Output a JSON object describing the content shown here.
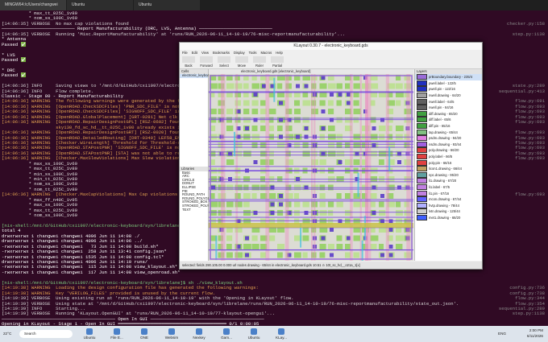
{
  "tabs": [
    "MINGW64:/c/Users/changwei",
    "Ubuntu",
    "Ubuntu"
  ],
  "terminal": {
    "lines": [
      {
        "text": "          * max_tt_025C_1v80",
        "color": "#e0e0e0"
      },
      {
        "text": "          * nom_ss_100C_1v60",
        "color": "#e0e0e0"
      },
      {
        "text": "[14:06:35] VERBOSE  No max cap violations found",
        "color": "#d8d8d8",
        "right": "checker.py:158"
      },
      {
        "text": "─────────────────────────── Report Manufacturability (DRC, LVS, Antenna) ───────────────────────────",
        "color": "#ffffff"
      },
      {
        "text": "[14:06:35] VERBOSE  Running 'Misc.ReportManufacturability' at 'runs/RUN_2026-06-11_14-10-19/76-misc-reportmanufacturability'...",
        "color": "#d8d8d8",
        "right": "step.py:1138"
      },
      {
        "text": "* Antenna",
        "color": "#ffffff"
      },
      {
        "text": "Passed ✅",
        "color": "#ffffff"
      },
      {
        "text": "",
        "color": "#ffffff"
      },
      {
        "text": "* LVS",
        "color": "#ffffff"
      },
      {
        "text": "Passed ✅",
        "color": "#ffffff"
      },
      {
        "text": "",
        "color": "#ffffff"
      },
      {
        "text": "* DRC",
        "color": "#ffffff"
      },
      {
        "text": "Passed ✅",
        "color": "#ffffff"
      },
      {
        "text": "",
        "color": "#ffffff"
      },
      {
        "text": "[14:06:36] INFO     Saving views to '/mnt/d/GitHub/cxi1997/electronic-keyboard/syn/librelane/runs/RUN_2026-06-11_14-10-19/final'...",
        "color": "#d8d8d8",
        "right": "state.py:289"
      },
      {
        "text": "[14:06:36] INFO     Flow complete.",
        "color": "#d8d8d8",
        "right": "sequential.py:413"
      },
      {
        "text": "Classic - Stage 80 - Report Manufacturability",
        "color": "#ffffff"
      },
      {
        "text": "[14:06:36] WARNING  The following warnings were generated by the flow:",
        "color": "#e0a050",
        "right": "flow.py:691"
      },
      {
        "text": "[14:06:36] WARNING  [OpenROAD.CheckSDCFiles] 'PNR_SDC_FILE' is not defined. Using generic fallback SDC for OpenROAD PnR steps.",
        "color": "#e0a050",
        "right": "flow.py:693"
      },
      {
        "text": "[14:06:36] WARNING  [OpenROAD.CheckSDCFiles] 'SIGNOFF_SDC_FILE' is not defined. Using generic fallback SDC for OpenROAD PnR steps.",
        "color": "#e0a050",
        "right": "flow.py:693"
      },
      {
        "text": "[14:06:36] WARNING  [OpenROAD.GlobalPlacement] [GRT-0281] Net clk has a single pin.",
        "color": "#e0a050",
        "right": "flow.py:693"
      },
      {
        "text": "[14:06:36] WARNING  [OpenROAD.RepairDesignPostGPL] [RSZ-0602] found 2 floating nets.",
        "color": "#e0a050",
        "right": "flow.py:693"
      },
      {
        "text": "                    sky130_fd_sc_hd__tt_025C_1v80 already exists in the library.",
        "color": "#e0a050"
      },
      {
        "text": "[14:06:36] WARNING  [OpenROAD.RepairDesignPostGRT] [RSZ-0020] found 2 floating nets.",
        "color": "#e0a050",
        "right": "flow.py:693"
      },
      {
        "text": "[14:06:36] WARNING  [OpenROAD.DetailedRouting] [DRT-0349] LEF58_ENCLOSURE with no CUTCLASS is not supported.",
        "color": "#e0a050",
        "right": "flow.py:693"
      },
      {
        "text": "[14:06:36] WARNING  [Checker.WireLength] Threshold for Threshold-surpassing long wires is not set.",
        "color": "#e0a050",
        "right": "flow.py:693"
      },
      {
        "text": "[14:06:36] WARNING  [OpenROAD.STAPostPNR] 'SIGNOFF_SDC_FILE' is not defined.",
        "color": "#e0a050",
        "right": "flow.py:693"
      },
      {
        "text": "[14:06:36] WARNING  [OpenROAD.STAPostPNR] [STA] was not able to read the max cap file.",
        "color": "#e0a050",
        "right": "flow.py:693"
      },
      {
        "text": "[14:06:36] WARNING  [Checker.MaxSlewViolations] Max Slew violations found in the following corners:",
        "color": "#e0a050",
        "right": "flow.py:693"
      },
      {
        "text": "          * max_ss_100C_1v60",
        "color": "#e0e0e0"
      },
      {
        "text": "          * max_tt_025C_1v80",
        "color": "#e0e0e0"
      },
      {
        "text": "          * min_ss_100C_1v60",
        "color": "#e0e0e0"
      },
      {
        "text": "          * min_tt_025C_1v80",
        "color": "#e0e0e0"
      },
      {
        "text": "          * nom_ss_100C_1v60",
        "color": "#e0e0e0"
      },
      {
        "text": "          * nom_tt_025C_1v80",
        "color": "#e0e0e0"
      },
      {
        "text": "[14:06:36] WARNING  [Checker.MaxCapViolations] Max Cap violations found in the following corners:",
        "color": "#e0a050",
        "right": "flow.py:693"
      },
      {
        "text": "          * max_ff_n40C_1v95",
        "color": "#e0e0e0"
      },
      {
        "text": "          * max_ss_100C_1v60",
        "color": "#e0e0e0"
      },
      {
        "text": "          * max_tt_025C_1v80",
        "color": "#e0e0e0"
      },
      {
        "text": "          * nom_ss_100C_1v60",
        "color": "#e0e0e0"
      },
      {
        "text": "",
        "color": "#ffffff"
      },
      {
        "text": "[nix-shell:/mnt/d/GitHub/cxi1997/electronic-keyboard/syn/librelane]$ ls -al",
        "color": "#7fd07f"
      },
      {
        "text": "total 4",
        "color": "#ffffff"
      },
      {
        "text": "drwxrwxrwx 1 changwei changwei 4096 Jun 11 14:08 ./",
        "color": "#ffffff"
      },
      {
        "text": "drwxrwxrwx 1 changwei changwei 4096 Jun 11 14:06 ../",
        "color": "#ffffff"
      },
      {
        "text": "-rwxrwxrwx 1 changwei changwei   73 Jun 11 14:08 build.sh*",
        "color": "#ffffff"
      },
      {
        "text": "-rwxrwxrwx 1 changwei changwei  258 Jun 11 13:41 config.json*",
        "color": "#ffffff"
      },
      {
        "text": "-rwxrwxrwx 1 changwei changwei 1535 Jun 11 14:08 config.tcl*",
        "color": "#ffffff"
      },
      {
        "text": "drwxrwxrwx 1 changwei changwei 4096 Jun 11 14:10 runs/",
        "color": "#ffffff"
      },
      {
        "text": "-rwxrwxrwx 1 changwei changwei  115 Jun 11 14:08 view_klayout.sh*",
        "color": "#ffffff"
      },
      {
        "text": "-rwxrwxrwx 1 changwei changwei  117 Jun 11 14:08 view_openroad.sh*",
        "color": "#ffffff"
      },
      {
        "text": "",
        "color": "#ffffff"
      },
      {
        "text": "[nix-shell:/mnt/d/GitHub/cxi1997/electronic-keyboard/syn/librelane]$ sh ./view_klayout.sh",
        "color": "#7fd07f"
      },
      {
        "text": "[14:19:38] WARNING  Loading the design configuration file has generated the following warnings:",
        "color": "#e0a050",
        "right": "config.py:736"
      },
      {
        "text": "[14:19:38] WARNING  Key 'VERILOG_FILES' provided is unused by the current flow.",
        "color": "#e0a050",
        "right": "config.py:738"
      },
      {
        "text": "[14:19:39] VERBOSE  Using existing run at 'runs/RUN_2026-06-11_14-10-19' with the 'Opening in KLayout' flow.",
        "color": "#d8d8d8",
        "right": "flow.py:344"
      },
      {
        "text": "[14:19:39] VERBOSE  Using state at '/mnt/d/GitHub/cxi1997/electronic-keyboard/syn/librelane/runs/RUN_2026-06-11_14-10-19/76-misc-reportmanufacturability/state_out.json'.",
        "color": "#d8d8d8",
        "right": "flow.py:354"
      },
      {
        "text": "[14:19:39] INFO     Starting...",
        "color": "#d8d8d8",
        "right": "sequential.py:289"
      },
      {
        "text": "[14:19:39] VERBOSE  Running 'KLayout.OpenGUI' at 'runs/RUN_2026-06-11_14-10-19/77-klayout-opengui'...",
        "color": "#d8d8d8",
        "right": "step.py:1138"
      },
      {
        "text": "────────────────────────────────────────── Open In GUI ──────────────────────────────────────────",
        "color": "#ffffff"
      },
      {
        "text": "Opening in KLayout - Stage 1 - Open In GUI ━━━━━━━━━━━━━━━━━━━━━━━━━━━━━━━━━━━━━━━━ 0/1 0:00:05",
        "color": "#ffffff"
      }
    ]
  },
  "klayout": {
    "title": "KLayout 0.30.7 - electronic_keyboard.gds",
    "menu": [
      "File",
      "Edit",
      "View",
      "Bookmarks",
      "Display",
      "Tools",
      "Macros",
      "Help"
    ],
    "toolbar": [
      "Back",
      "Forward",
      "Select",
      "Move",
      "Ruler",
      "Partial"
    ],
    "cells_header": "Cells",
    "cell": "electronic_keyboard",
    "libraries_header": "Libraries",
    "library": "Basic",
    "libraries": [
      "ARC",
      "CIRCLE",
      "DONUT",
      "ELLIPSE",
      "PIE",
      "ROUND_PATH",
      "ROUND_POLYGON",
      "STROKED_BOX",
      "STROKED_POLYGON",
      "TEXT"
    ],
    "tab": "electronic_keyboard.gds [electronic_keyboard]",
    "layers_header": "Layers",
    "layers": [
      {
        "name": "prBoundary.boundary - 235/4",
        "color": "#9a6cd8"
      },
      {
        "name": "pwell.label - 122/5",
        "color": "#2030c0"
      },
      {
        "name": "pwell.pin - 122/16",
        "color": "#2030c0"
      },
      {
        "name": "nwell.drawing - 64/20",
        "color": "#a0a0a0"
      },
      {
        "name": "nwell.label - 64/5",
        "color": "#606060"
      },
      {
        "name": "nwell.pin - 64/16",
        "color": "#606060"
      },
      {
        "name": "diff.drawing - 65/20",
        "color": "#40a040"
      },
      {
        "name": "diff.label - 65/6",
        "color": "#40a040"
      },
      {
        "name": "diff.pin - 65/16",
        "color": "#40a040"
      },
      {
        "name": "tap.drawing - 65/44",
        "color": "#80c080"
      },
      {
        "name": "psdm.drawing - 94/20",
        "color": "#e080e0"
      },
      {
        "name": "nsdm.drawing - 93/44",
        "color": "#a060e0"
      },
      {
        "name": "poly.drawing - 66/20",
        "color": "#e04040"
      },
      {
        "name": "poly.label - 66/5",
        "color": "#e04040"
      },
      {
        "name": "poly.pin - 66/16",
        "color": "#e04040"
      },
      {
        "name": "licon1.drawing - 66/44",
        "color": "#c0a060"
      },
      {
        "name": "npc.drawing - 95/20",
        "color": "#60a0a0"
      },
      {
        "name": "li1.drawing - 67/20",
        "color": "#c080e0"
      },
      {
        "name": "li1.label - 67/5",
        "color": "#c080e0"
      },
      {
        "name": "li1.pin - 67/16",
        "color": "#c080e0"
      },
      {
        "name": "mcon.drawing - 67/44",
        "color": "#6060ff"
      },
      {
        "name": "hvtp.drawing - 78/44",
        "color": "#b0b0ff"
      },
      {
        "name": "lvtn.drawing - 125/44",
        "color": "#d0d0d0"
      },
      {
        "name": "met1.drawing - 68/20",
        "color": "#4060ff"
      }
    ],
    "status": "selected: fields 290.105.00 0.000 url nodes drawing - 65/44 in electronic_keyboard.gds 10.51 ⊙ 10t_sc_hd__o21a_1[x]"
  },
  "taskbar": {
    "search": "Search",
    "apps": [
      "Ubuntu",
      "File E...",
      "ONE",
      "Websim",
      "Nexkey",
      "Gam...",
      "Ubuntu",
      "KLay..."
    ],
    "weather": "22°C",
    "lang": "ENG",
    "time": "2:00 PM",
    "date": "6/11/2026"
  }
}
